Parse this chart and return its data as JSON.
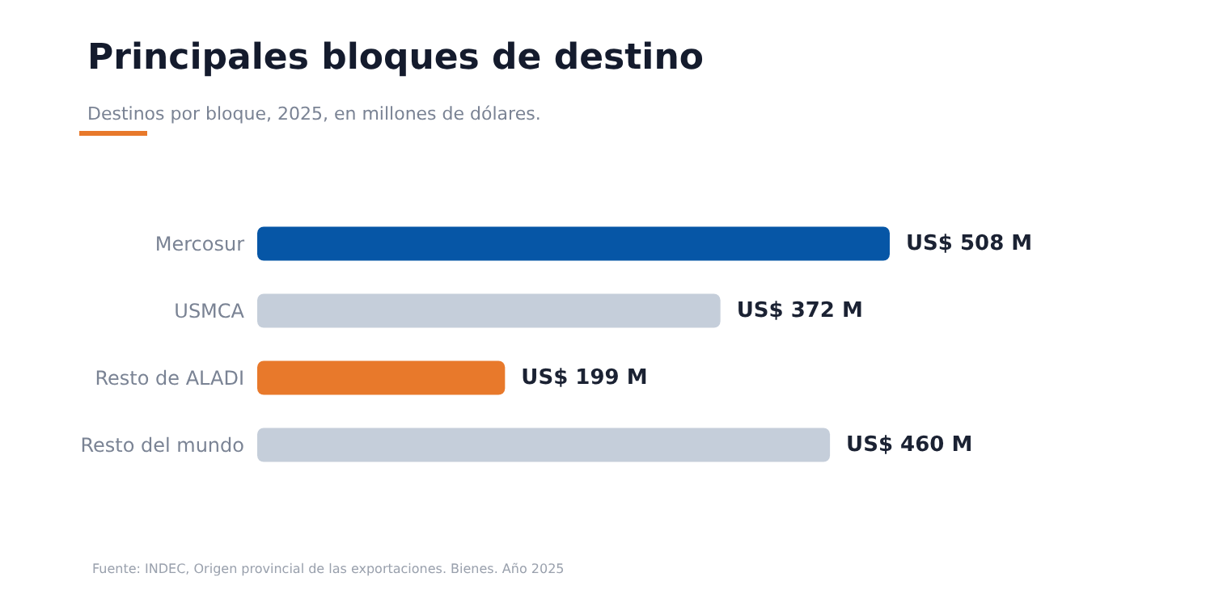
{
  "chart_data": {
    "type": "bar",
    "orientation": "horizontal",
    "title": "Principales bloques de destino",
    "subtitle": "Destinos por bloque, 2025, en millones de dólares.",
    "categories": [
      "Mercosur",
      "USMCA",
      "Resto de ALADI",
      "Resto del mundo"
    ],
    "values": [
      508,
      372,
      199,
      460
    ],
    "colors": [
      "#0656a6",
      "#c5ceda",
      "#e8792b",
      "#c5ceda"
    ],
    "value_labels": [
      "US$ 508 M",
      "US$ 372 M",
      "US$ 199 M",
      "US$ 460 M"
    ],
    "annotations": [
      "Fuente: INDEC, Origen provincial de las exportaciones. Bienes. Año 2025"
    ]
  }
}
